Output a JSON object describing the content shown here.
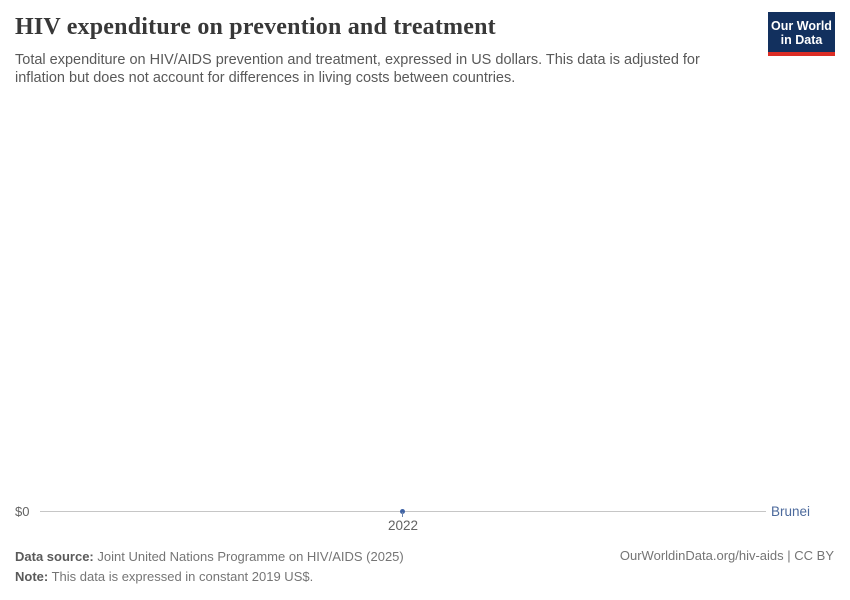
{
  "header": {
    "title": "HIV expenditure on prevention and treatment",
    "subtitle": "Total expenditure on HIV/AIDS prevention and treatment, expressed in US dollars. This data is adjusted for inflation but does not account for differences in living costs between countries.",
    "logo": {
      "line1": "Our World",
      "line2": "in Data"
    }
  },
  "chart_data": {
    "type": "line",
    "title": "HIV expenditure on prevention and treatment",
    "x": [
      2022
    ],
    "series": [
      {
        "name": "Brunei",
        "values": [
          0
        ],
        "color": "#4c6a9c"
      }
    ],
    "x_tick_labels": [
      "2022"
    ],
    "y_tick_labels": [
      "$0"
    ],
    "ylim": [
      0,
      null
    ],
    "grid": false,
    "legend_position": "inline-right-of-axis"
  },
  "axis": {
    "y_zero_label": "$0",
    "x_tick_label": "2022",
    "entity_label": "Brunei"
  },
  "footer": {
    "data_source_label": "Data source:",
    "data_source_text": "Joint United Nations Programme on HIV/AIDS (2025)",
    "note_label": "Note:",
    "note_text": "This data is expressed in constant 2019 US$.",
    "link": "OurWorldinData.org/hiv-aids | CC BY"
  },
  "colors": {
    "accent_blue": "#4c6a9c",
    "point_blue": "#3f63a5",
    "logo_navy": "#12305e",
    "logo_red": "#dc2d25",
    "axis_line": "#c6c6c6",
    "text_gray": "#636363",
    "title_gray": "#383838"
  }
}
